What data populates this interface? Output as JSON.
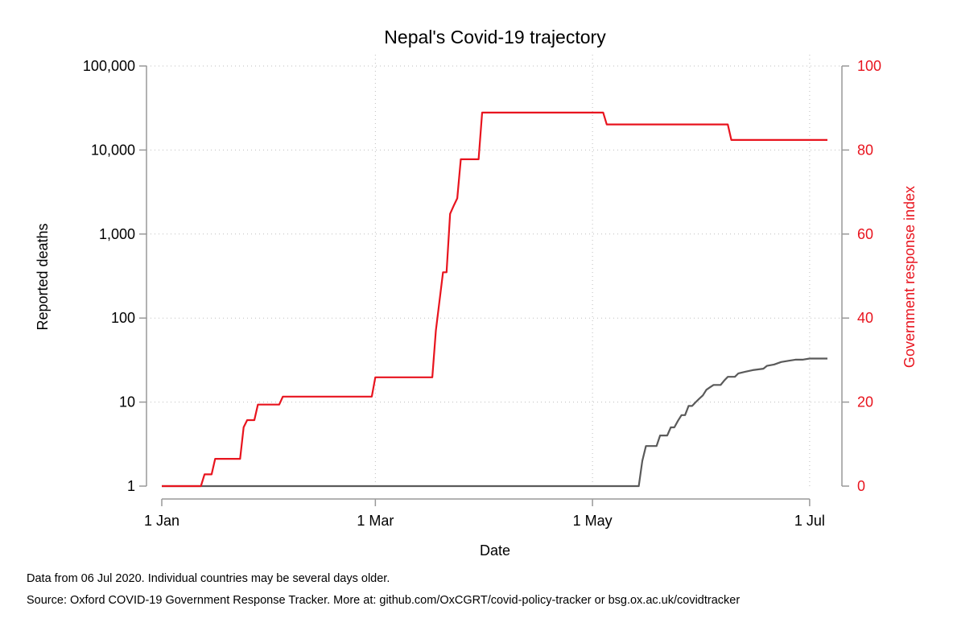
{
  "chart_data": {
    "type": "line",
    "title": "Nepal's Covid-19 trajectory",
    "xlabel": "Date",
    "ylabel": "Reported deaths",
    "y2label": "Government response index",
    "x_range": [
      "2020-01-01",
      "2020-07-06"
    ],
    "x_ticks": [
      {
        "date": "2020-01-01",
        "label": "1 Jan"
      },
      {
        "date": "2020-03-01",
        "label": "1 Mar"
      },
      {
        "date": "2020-05-01",
        "label": "1 May"
      },
      {
        "date": "2020-07-01",
        "label": "1 Jul"
      }
    ],
    "y_scale": "log",
    "ylim": [
      1,
      100000
    ],
    "y_ticks": [
      {
        "value": 1,
        "label": "1"
      },
      {
        "value": 10,
        "label": "10"
      },
      {
        "value": 100,
        "label": "100"
      },
      {
        "value": 1000,
        "label": "1,000"
      },
      {
        "value": 10000,
        "label": "10,000"
      },
      {
        "value": 100000,
        "label": "100,000"
      }
    ],
    "y2lim": [
      0,
      100
    ],
    "y2_ticks": [
      {
        "value": 0,
        "label": "0"
      },
      {
        "value": 20,
        "label": "20"
      },
      {
        "value": 40,
        "label": "40"
      },
      {
        "value": 60,
        "label": "60"
      },
      {
        "value": 80,
        "label": "80"
      },
      {
        "value": 100,
        "label": "100"
      }
    ],
    "grid": true,
    "colors": {
      "deaths": "#5a5a5a",
      "response": "#e8141e",
      "right_axis": "#e8141e",
      "axis": "#999999",
      "grid": "#bdbdbd"
    },
    "series": [
      {
        "key": "deaths",
        "axis": "left",
        "color": "#5a5a5a",
        "points": [
          [
            "2020-01-01",
            1
          ],
          [
            "2020-05-14",
            1
          ],
          [
            "2020-05-15",
            2
          ],
          [
            "2020-05-16",
            3
          ],
          [
            "2020-05-19",
            3
          ],
          [
            "2020-05-20",
            4
          ],
          [
            "2020-05-22",
            4
          ],
          [
            "2020-05-23",
            5
          ],
          [
            "2020-05-24",
            5
          ],
          [
            "2020-05-25",
            6
          ],
          [
            "2020-05-26",
            7
          ],
          [
            "2020-05-27",
            7
          ],
          [
            "2020-05-28",
            9
          ],
          [
            "2020-05-29",
            9
          ],
          [
            "2020-05-30",
            10
          ],
          [
            "2020-05-31",
            11
          ],
          [
            "2020-06-01",
            12
          ],
          [
            "2020-06-02",
            14
          ],
          [
            "2020-06-03",
            15
          ],
          [
            "2020-06-04",
            16
          ],
          [
            "2020-06-06",
            16
          ],
          [
            "2020-06-07",
            18
          ],
          [
            "2020-06-08",
            20
          ],
          [
            "2020-06-10",
            20
          ],
          [
            "2020-06-11",
            22
          ],
          [
            "2020-06-13",
            23
          ],
          [
            "2020-06-15",
            24
          ],
          [
            "2020-06-18",
            25
          ],
          [
            "2020-06-19",
            27
          ],
          [
            "2020-06-21",
            28
          ],
          [
            "2020-06-23",
            30
          ],
          [
            "2020-06-25",
            31
          ],
          [
            "2020-06-27",
            32
          ],
          [
            "2020-06-29",
            32
          ],
          [
            "2020-07-01",
            33
          ],
          [
            "2020-07-06",
            33
          ]
        ]
      },
      {
        "key": "response",
        "axis": "right",
        "color": "#e8141e",
        "points": [
          [
            "2020-01-01",
            0
          ],
          [
            "2020-01-12",
            0
          ],
          [
            "2020-01-13",
            2.8
          ],
          [
            "2020-01-15",
            2.8
          ],
          [
            "2020-01-16",
            6.5
          ],
          [
            "2020-01-23",
            6.5
          ],
          [
            "2020-01-24",
            14
          ],
          [
            "2020-01-25",
            15.7
          ],
          [
            "2020-01-27",
            15.7
          ],
          [
            "2020-01-28",
            19.4
          ],
          [
            "2020-02-03",
            19.4
          ],
          [
            "2020-02-04",
            21.3
          ],
          [
            "2020-02-29",
            21.3
          ],
          [
            "2020-03-01",
            25.9
          ],
          [
            "2020-03-17",
            25.9
          ],
          [
            "2020-03-18",
            37
          ],
          [
            "2020-03-20",
            50.9
          ],
          [
            "2020-03-21",
            50.9
          ],
          [
            "2020-03-22",
            64.8
          ],
          [
            "2020-03-23",
            66.7
          ],
          [
            "2020-03-24",
            68.5
          ],
          [
            "2020-03-25",
            77.8
          ],
          [
            "2020-03-30",
            77.8
          ],
          [
            "2020-03-31",
            88.9
          ],
          [
            "2020-05-04",
            88.9
          ],
          [
            "2020-05-05",
            86.1
          ],
          [
            "2020-06-08",
            86.1
          ],
          [
            "2020-06-09",
            82.4
          ],
          [
            "2020-07-06",
            82.4
          ]
        ]
      }
    ]
  },
  "footnote": {
    "line1": "Data from 06 Jul 2020. Individual countries may be several days older.",
    "line2": "Source: Oxford COVID-19 Government Response Tracker. More at: github.com/OxCGRT/covid-policy-tracker or bsg.ox.ac.uk/covidtracker"
  }
}
